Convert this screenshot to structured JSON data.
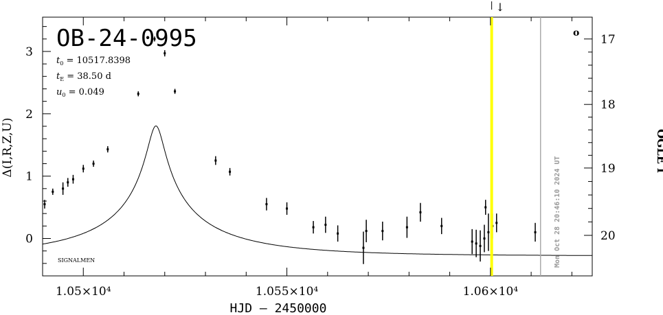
{
  "chart_data": {
    "type": "scatter",
    "title": "OB-24-0995",
    "params": {
      "t0": "10517.8398",
      "tE": "38.50 d",
      "u0": "0.049"
    },
    "xlabel": "HJD – 2450000",
    "ylabel": "Δ(I,R,Z,U)",
    "ylabel_right": "OGLE I",
    "xlim": [
      10490,
      10625
    ],
    "ylim": [
      -0.6,
      3.55
    ],
    "x_ticks": [
      {
        "value": 10500,
        "label": "1.05×10⁴"
      },
      {
        "value": 10550,
        "label": "1.055×10⁴"
      },
      {
        "value": 10600,
        "label": "1.06×10⁴"
      }
    ],
    "y_ticks": [
      {
        "value": 0,
        "label": "0"
      },
      {
        "value": 1,
        "label": "1"
      },
      {
        "value": 2,
        "label": "2"
      },
      {
        "value": 3,
        "label": "3"
      }
    ],
    "right_ticks": [
      {
        "value": 3.2,
        "label": "17"
      },
      {
        "value": 2.15,
        "label": "18"
      },
      {
        "value": 1.13,
        "label": "19"
      },
      {
        "value": 0.05,
        "label": "20"
      }
    ],
    "points": [
      {
        "x": 10490.5,
        "y": 0.55,
        "err": 0.07
      },
      {
        "x": 10492.5,
        "y": 0.75,
        "err": 0.05
      },
      {
        "x": 10495.0,
        "y": 0.8,
        "err": 0.1
      },
      {
        "x": 10496.2,
        "y": 0.9,
        "err": 0.07
      },
      {
        "x": 10497.5,
        "y": 0.95,
        "err": 0.07
      },
      {
        "x": 10500.0,
        "y": 1.12,
        "err": 0.06
      },
      {
        "x": 10502.5,
        "y": 1.2,
        "err": 0.05
      },
      {
        "x": 10506.0,
        "y": 1.43,
        "err": 0.05
      },
      {
        "x": 10513.5,
        "y": 2.32,
        "err": 0.04
      },
      {
        "x": 10517.5,
        "y": 3.2,
        "err": 0.04
      },
      {
        "x": 10520.0,
        "y": 2.97,
        "err": 0.05
      },
      {
        "x": 10522.5,
        "y": 2.36,
        "err": 0.04
      },
      {
        "x": 10532.5,
        "y": 1.25,
        "err": 0.07
      },
      {
        "x": 10536.0,
        "y": 1.07,
        "err": 0.06
      },
      {
        "x": 10545.0,
        "y": 0.55,
        "err": 0.1
      },
      {
        "x": 10550.0,
        "y": 0.48,
        "err": 0.1
      },
      {
        "x": 10556.5,
        "y": 0.18,
        "err": 0.1
      },
      {
        "x": 10559.5,
        "y": 0.22,
        "err": 0.13
      },
      {
        "x": 10562.5,
        "y": 0.08,
        "err": 0.13
      },
      {
        "x": 10568.8,
        "y": -0.15,
        "err": 0.26
      },
      {
        "x": 10569.5,
        "y": 0.12,
        "err": 0.18
      },
      {
        "x": 10573.5,
        "y": 0.12,
        "err": 0.15
      },
      {
        "x": 10579.5,
        "y": 0.18,
        "err": 0.17
      },
      {
        "x": 10582.8,
        "y": 0.42,
        "err": 0.15
      },
      {
        "x": 10588.0,
        "y": 0.2,
        "err": 0.13
      },
      {
        "x": 10595.5,
        "y": -0.05,
        "err": 0.2
      },
      {
        "x": 10596.5,
        "y": -0.08,
        "err": 0.22
      },
      {
        "x": 10597.5,
        "y": -0.12,
        "err": 0.25
      },
      {
        "x": 10598.5,
        "y": 0.0,
        "err": 0.22
      },
      {
        "x": 10598.8,
        "y": 0.5,
        "err": 0.12
      },
      {
        "x": 10599.5,
        "y": 0.1,
        "err": 0.3
      },
      {
        "x": 10600.5,
        "y": 0.2,
        "err": 0.2
      },
      {
        "x": 10601.5,
        "y": 0.25,
        "err": 0.15
      },
      {
        "x": 10611.0,
        "y": 0.1,
        "err": 0.15
      }
    ],
    "model": {
      "t0": 10517.84,
      "tE": 38.5,
      "u0": 0.049,
      "fs": 0.3,
      "offset": -0.28
    },
    "vlines": [
      {
        "x": 10600.3,
        "color": "#ffff00",
        "role": "current-time"
      },
      {
        "x": 10612.3,
        "color": "#aaaaaa",
        "role": "date-line"
      }
    ],
    "date_label": "Mon Oct 28 20:46:10 2024 UT",
    "credit": "SIGNALMEN",
    "corner_mark": "o",
    "arrow_mark": "↓"
  }
}
